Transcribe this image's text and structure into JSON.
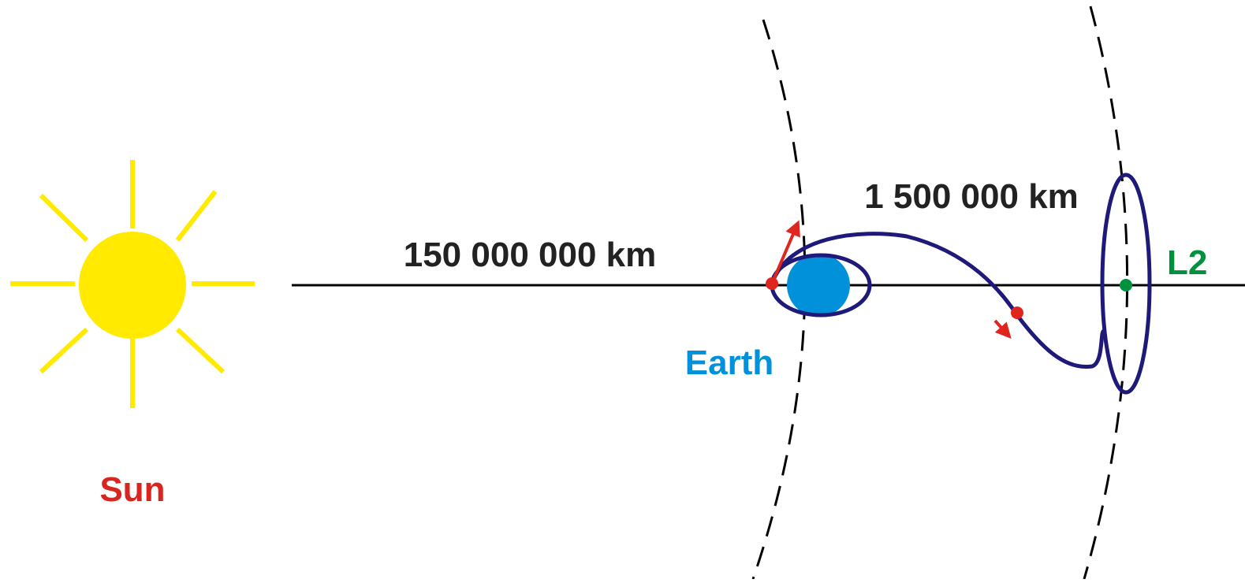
{
  "labels": {
    "sun": "Sun",
    "earth": "Earth",
    "l2": "L2",
    "sun_earth_distance": "150 000 000 km",
    "earth_l2_distance": "1 500 000 km"
  }
}
